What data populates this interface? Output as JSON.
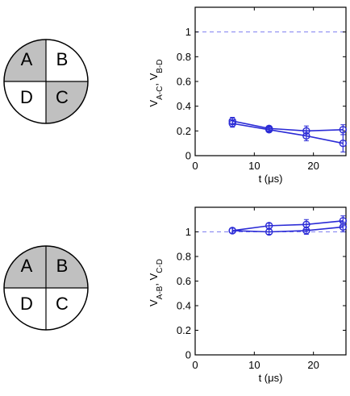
{
  "diagrams": [
    {
      "quadrants": [
        {
          "label": "A",
          "shaded": true
        },
        {
          "label": "B",
          "shaded": false
        },
        {
          "label": "C",
          "shaded": true
        },
        {
          "label": "D",
          "shaded": false
        }
      ]
    },
    {
      "quadrants": [
        {
          "label": "A",
          "shaded": true
        },
        {
          "label": "B",
          "shaded": true
        },
        {
          "label": "C",
          "shaded": false
        },
        {
          "label": "D",
          "shaded": false
        }
      ]
    }
  ],
  "colors": {
    "shade": "#c0c0c0",
    "series": "#2b2bd6",
    "reference": "#7f7ff0",
    "frame": "#000000"
  },
  "chart_data": [
    {
      "type": "line",
      "xlabel": "t (μs)",
      "ylabel": "V",
      "ylabel_sub1": "A-C",
      "ylabel_sep": ", V",
      "ylabel_sub2": "B-D",
      "xlim": [
        0,
        25.5
      ],
      "ylim": [
        0,
        1.2
      ],
      "xticks": [
        0,
        10,
        20
      ],
      "yticks": [
        0,
        0.2,
        0.4,
        0.6,
        0.8,
        1
      ],
      "reference_line": 1,
      "series": [
        {
          "x": [
            6.3,
            12.5,
            18.8,
            25
          ],
          "y": [
            0.28,
            0.22,
            0.2,
            0.21
          ],
          "err": [
            0.03,
            0.02,
            0.04,
            0.04
          ]
        },
        {
          "x": [
            6.3,
            12.5,
            18.8,
            25
          ],
          "y": [
            0.26,
            0.21,
            0.16,
            0.1
          ],
          "err": [
            0.03,
            0.02,
            0.04,
            0.07
          ]
        }
      ]
    },
    {
      "type": "line",
      "xlabel": "t (μs)",
      "ylabel": "V",
      "ylabel_sub1": "A-B",
      "ylabel_sep": ", V",
      "ylabel_sub2": "C-D",
      "xlim": [
        0,
        25.5
      ],
      "ylim": [
        0,
        1.2
      ],
      "xticks": [
        0,
        10,
        20
      ],
      "yticks": [
        0,
        0.2,
        0.4,
        0.6,
        0.8,
        1
      ],
      "reference_line": 1,
      "series": [
        {
          "x": [
            6.3,
            12.5,
            18.8,
            25
          ],
          "y": [
            1.01,
            1.05,
            1.06,
            1.09
          ],
          "err": [
            0.02,
            0.02,
            0.04,
            0.04
          ]
        },
        {
          "x": [
            6.3,
            12.5,
            18.8,
            25
          ],
          "y": [
            1.01,
            1.0,
            1.01,
            1.04
          ],
          "err": [
            0.02,
            0.02,
            0.03,
            0.04
          ]
        }
      ]
    }
  ]
}
